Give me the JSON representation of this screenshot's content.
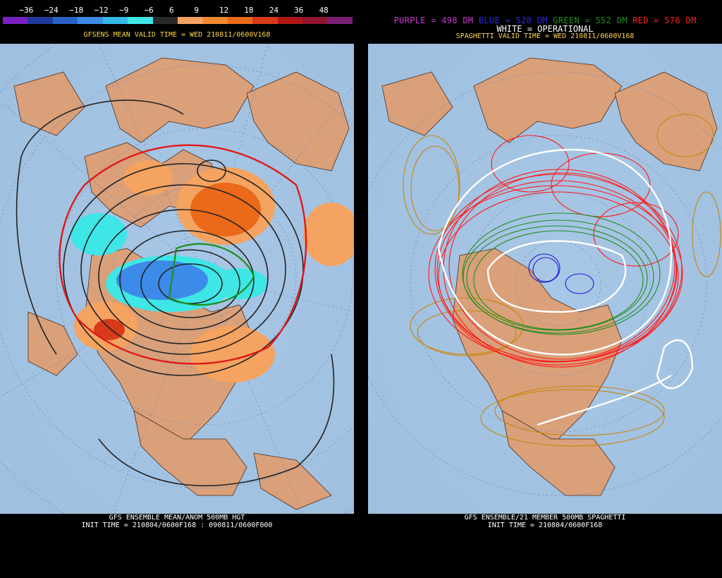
{
  "left": {
    "colorbar_ticks": [
      "−36",
      "−24",
      "−18",
      "−12",
      "−9",
      "−6",
      "6",
      "9",
      "12",
      "18",
      "24",
      "36",
      "48"
    ],
    "colorbar_colors": [
      "#7a1fc0",
      "#1f3a9c",
      "#2a63c6",
      "#3d8be8",
      "#36b9e6",
      "#3ee6e6",
      "#2a2a2a",
      "#f4a360",
      "#f08a32",
      "#ea6a1a",
      "#d73a1a",
      "#b01818",
      "#8e1530",
      "#7a1f74"
    ],
    "subtitle": "GFSENS MEAN VALID TIME = WED 210811/0600V168",
    "footer1": "GFS ENSEMBLE MEAN/ANOM 500MB HGT",
    "footer2": "INIT TIME = 210804/0600F168 : 090811/0600F000"
  },
  "right": {
    "legend": [
      {
        "text": "PURPLE = 498 DM",
        "color": "#c93ad6"
      },
      {
        "text": "BLUE = 528 DM",
        "color": "#2a2ae0"
      },
      {
        "text": "GREEN = 552 DM",
        "color": "#1e8e1e"
      },
      {
        "text": "RED = 576 DM",
        "color": "#ff2020"
      }
    ],
    "legend_line2": "WHITE = OPERATIONAL",
    "subtitle": "SPAGHETTI VALID TIME = WED 210811/0600V168",
    "footer1": "GFS ENSEMBLE/21 MEMBER 500MB SPAGHETTI",
    "footer2": "INIT TIME = 210804/0600F168"
  }
}
